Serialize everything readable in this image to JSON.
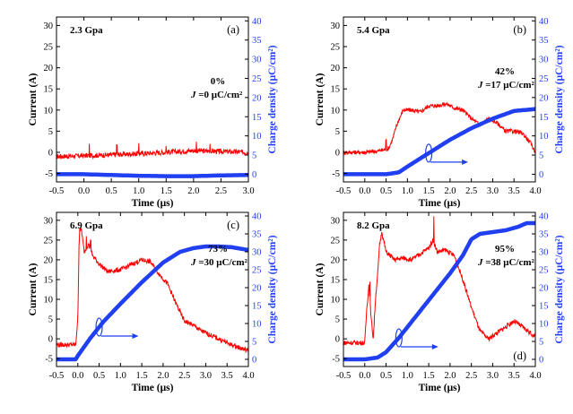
{
  "chart_data": [
    {
      "type": "line",
      "panel": "(a)",
      "pressure": "2.3 Gpa",
      "percent": "0%",
      "j_text": "=0 μC/cm²",
      "j_symbol": "J",
      "xlabel": "Time (μs)",
      "ylabel_left": "Current (A)",
      "ylabel_right": "Charge density (μC/cm²)",
      "xlim": [
        -0.5,
        3.0
      ],
      "xticks": [
        -0.5,
        0.0,
        0.5,
        1.0,
        1.5,
        2.0,
        2.5,
        3.0
      ],
      "xtick_labels": [
        "-0.5",
        "0.0",
        "0.5",
        "1.0",
        "1.5",
        "2.0",
        "2.5",
        "3.0"
      ],
      "ylim_left": [
        -7,
        32
      ],
      "yticks_left": [
        -5,
        0,
        5,
        10,
        15,
        20,
        25,
        30
      ],
      "ylim_right": [
        -2,
        41
      ],
      "yticks_right": [
        0,
        5,
        10,
        15,
        20,
        25,
        30,
        35,
        40
      ],
      "has_arrow": false,
      "series": [
        {
          "axis": "left",
          "color": "#ff0000",
          "x": [
            -0.5,
            0.0,
            0.5,
            1.0,
            1.5,
            2.0,
            2.5,
            3.0
          ],
          "y": [
            -1.0,
            -0.8,
            -0.6,
            -0.3,
            0.0,
            0.4,
            0.2,
            0.0
          ],
          "noise": 0.6,
          "spikes": [
            [
              0.1,
              2.0
            ],
            [
              0.6,
              1.8
            ],
            [
              1.0,
              2.2
            ],
            [
              1.5,
              1.5
            ],
            [
              2.05,
              2.5
            ],
            [
              2.3,
              2.0
            ]
          ]
        },
        {
          "axis": "right",
          "color": "#1f3ff0",
          "x": [
            -0.5,
            0.0,
            0.5,
            1.0,
            1.5,
            2.0,
            2.5,
            3.0
          ],
          "y": [
            0.0,
            0.0,
            -0.2,
            -0.4,
            -0.5,
            -0.5,
            -0.3,
            -0.2
          ]
        }
      ]
    },
    {
      "type": "line",
      "panel": "(b)",
      "pressure": "5.4 Gpa",
      "percent": "42%",
      "j_text": "=17 μC/cm²",
      "j_symbol": "J",
      "xlabel": "Time (μs)",
      "ylabel_left": "Current (A)",
      "ylabel_right": "Charge density (μC/cm²)",
      "xlim": [
        -0.5,
        4.0
      ],
      "xticks": [
        -0.5,
        0.0,
        0.5,
        1.0,
        1.5,
        2.0,
        2.5,
        3.0,
        3.5,
        4.0
      ],
      "xtick_labels": [
        "-0.5",
        "0.0",
        "0.5",
        "1.0",
        "1.5",
        "2.0",
        "2.5",
        "3.0",
        "3.5",
        "4.0"
      ],
      "ylim_left": [
        -7,
        32
      ],
      "yticks_left": [
        -5,
        0,
        5,
        10,
        15,
        20,
        25,
        30
      ],
      "ylim_right": [
        -2,
        41
      ],
      "yticks_right": [
        0,
        5,
        10,
        15,
        20,
        25,
        30,
        35,
        40
      ],
      "has_arrow": true,
      "arrow_x": 1.5,
      "series": [
        {
          "axis": "left",
          "color": "#ff0000",
          "x": [
            -0.5,
            0.0,
            0.3,
            0.55,
            0.65,
            0.75,
            0.9,
            1.1,
            1.3,
            1.5,
            1.7,
            1.9,
            2.1,
            2.3,
            2.5,
            2.7,
            2.9,
            3.1,
            3.3,
            3.5,
            3.7,
            3.9,
            4.0
          ],
          "y": [
            0.0,
            0.0,
            0.3,
            0.8,
            3.0,
            6.5,
            10.0,
            10.0,
            9.5,
            11.0,
            11.0,
            11.5,
            10.5,
            10.0,
            8.0,
            6.5,
            8.0,
            7.0,
            5.0,
            5.0,
            4.5,
            2.0,
            0.0
          ],
          "noise": 0.5,
          "spikes": [
            [
              0.5,
              3.0
            ]
          ]
        },
        {
          "axis": "right",
          "color": "#1f3ff0",
          "x": [
            -0.5,
            0.0,
            0.5,
            0.8,
            1.0,
            1.5,
            2.0,
            2.5,
            3.0,
            3.5,
            4.0
          ],
          "y": [
            0.0,
            0.0,
            0.0,
            0.5,
            2.0,
            5.5,
            9.0,
            12.0,
            14.5,
            16.5,
            17.0
          ]
        }
      ]
    },
    {
      "type": "line",
      "panel": "(c)",
      "pressure": "6.9 Gpa",
      "percent": "73%",
      "j_text": "=30 μC/cm²",
      "j_symbol": "J",
      "xlabel": "Time (μs)",
      "ylabel_left": "Current (A)",
      "ylabel_right": "Charge density (μC/cm²)",
      "xlim": [
        -0.5,
        4.0
      ],
      "xticks": [
        -0.5,
        0.0,
        0.5,
        1.0,
        1.5,
        2.0,
        2.5,
        3.0,
        3.5,
        4.0
      ],
      "xtick_labels": [
        "-0.5",
        "0.0",
        "0.5",
        "1.0",
        "1.5",
        "2.0",
        "2.5",
        "3.0",
        "3.5",
        "4.0"
      ],
      "ylim_left": [
        -7,
        32
      ],
      "yticks_left": [
        -5,
        0,
        5,
        10,
        15,
        20,
        25,
        30
      ],
      "ylim_right": [
        -2,
        41
      ],
      "yticks_right": [
        0,
        5,
        10,
        15,
        20,
        25,
        30,
        35,
        40
      ],
      "has_arrow": true,
      "arrow_x": 0.5,
      "series": [
        {
          "axis": "left",
          "color": "#ff0000",
          "x": [
            -0.5,
            -0.05,
            0.0,
            0.03,
            0.08,
            0.15,
            0.25,
            0.35,
            0.5,
            0.7,
            1.0,
            1.3,
            1.5,
            1.7,
            1.9,
            2.1,
            2.3,
            2.5,
            2.7,
            2.9,
            3.1,
            3.3,
            3.6,
            4.0
          ],
          "y": [
            -1.5,
            -1.5,
            5.0,
            25.0,
            28.0,
            22.0,
            24.0,
            21.0,
            19.0,
            17.0,
            17.5,
            19.0,
            20.0,
            19.5,
            16.5,
            14.0,
            9.0,
            4.5,
            3.5,
            2.0,
            1.0,
            0.0,
            -1.5,
            -3.0
          ],
          "noise": 0.6,
          "spikes": [
            [
              0.05,
              28.0
            ],
            [
              0.2,
              26.0
            ],
            [
              0.3,
              25.0
            ]
          ]
        },
        {
          "axis": "right",
          "color": "#1f3ff0",
          "x": [
            -0.5,
            -0.05,
            0.0,
            0.3,
            0.6,
            1.0,
            1.5,
            2.0,
            2.4,
            2.7,
            3.0,
            3.3,
            3.6,
            4.0
          ],
          "y": [
            0.0,
            0.0,
            1.0,
            6.0,
            10.5,
            15.5,
            21.5,
            27.0,
            30.0,
            31.0,
            31.5,
            31.5,
            31.3,
            30.5
          ]
        }
      ]
    },
    {
      "type": "line",
      "panel": "(d)",
      "pressure": "8.2 Gpa",
      "percent": "95%",
      "j_text": "=38 μC/cm²",
      "j_symbol": "J",
      "xlabel": "Time (μs)",
      "ylabel_left": "Current (A)",
      "ylabel_right": "Charge density (μC/cm²)",
      "xlim": [
        -0.5,
        4.0
      ],
      "xticks": [
        -0.5,
        0.0,
        0.5,
        1.0,
        1.5,
        2.0,
        2.5,
        3.0,
        3.5,
        4.0
      ],
      "xtick_labels": [
        "-0.5",
        "0.0",
        "0.5",
        "1.0",
        "1.5",
        "2.0",
        "2.5",
        "3.0",
        "3.5",
        "4.0"
      ],
      "ylim_left": [
        -7,
        32
      ],
      "yticks_left": [
        -5,
        0,
        5,
        10,
        15,
        20,
        25,
        30
      ],
      "ylim_right": [
        -2,
        41
      ],
      "yticks_right": [
        0,
        5,
        10,
        15,
        20,
        25,
        30,
        35,
        40
      ],
      "has_arrow": true,
      "arrow_x": 0.8,
      "series": [
        {
          "axis": "left",
          "color": "#ff0000",
          "x": [
            -0.5,
            0.0,
            0.05,
            0.1,
            0.15,
            0.2,
            0.25,
            0.3,
            0.35,
            0.4,
            0.5,
            0.7,
            0.9,
            1.1,
            1.3,
            1.5,
            1.6,
            1.7,
            1.9,
            2.1,
            2.3,
            2.5,
            2.7,
            2.9,
            3.1,
            3.3,
            3.5,
            3.7,
            4.0
          ],
          "y": [
            -1.0,
            -1.0,
            8.0,
            14.0,
            5.0,
            0.0,
            10.0,
            16.0,
            24.0,
            27.0,
            22.0,
            20.0,
            20.5,
            20.0,
            21.5,
            23.0,
            25.0,
            22.0,
            22.5,
            21.0,
            15.0,
            8.0,
            2.0,
            0.0,
            1.5,
            3.0,
            4.5,
            3.0,
            0.5
          ],
          "noise": 0.6,
          "spikes": [
            [
              0.12,
              14.5
            ],
            [
              0.4,
              27.0
            ],
            [
              1.62,
              31.0
            ]
          ]
        },
        {
          "axis": "right",
          "color": "#1f3ff0",
          "x": [
            -0.5,
            0.0,
            0.3,
            0.5,
            0.8,
            1.2,
            1.6,
            2.0,
            2.3,
            2.5,
            2.7,
            3.0,
            3.3,
            3.6,
            3.8,
            4.0
          ],
          "y": [
            0.0,
            0.0,
            0.5,
            2.0,
            6.0,
            12.0,
            18.0,
            24.0,
            29.0,
            33.5,
            35.0,
            35.5,
            36.0,
            37.0,
            38.0,
            38.0
          ]
        }
      ]
    }
  ]
}
